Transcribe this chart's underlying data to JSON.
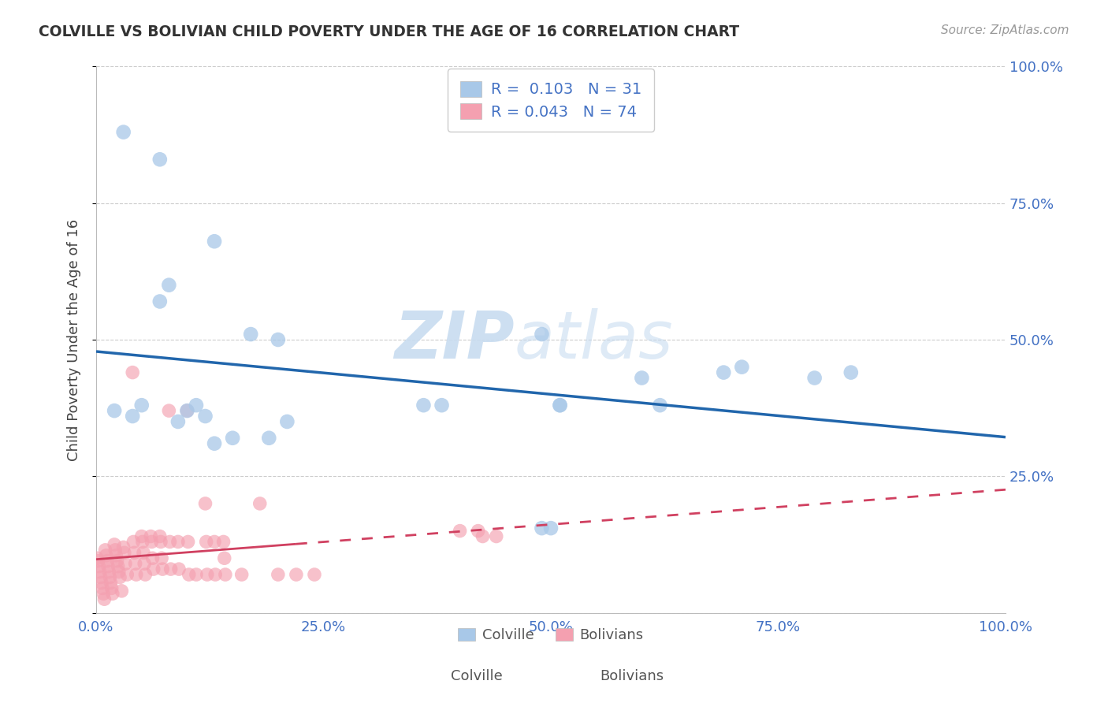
{
  "title": "COLVILLE VS BOLIVIAN CHILD POVERTY UNDER THE AGE OF 16 CORRELATION CHART",
  "source": "Source: ZipAtlas.com",
  "ylabel": "Child Poverty Under the Age of 16",
  "xlim": [
    0,
    1.0
  ],
  "ylim": [
    0,
    1.0
  ],
  "xticks": [
    0.0,
    0.25,
    0.5,
    0.75,
    1.0
  ],
  "yticks": [
    0.0,
    0.25,
    0.5,
    0.75,
    1.0
  ],
  "xticklabels": [
    "0.0%",
    "25.0%",
    "50.0%",
    "75.0%",
    "100.0%"
  ],
  "yticklabels": [
    "",
    "25.0%",
    "50.0%",
    "75.0%",
    "100.0%"
  ],
  "colville_color": "#a8c8e8",
  "bolivian_color": "#f4a0b0",
  "colville_R": 0.103,
  "colville_N": 31,
  "bolivian_R": 0.043,
  "bolivian_N": 74,
  "colville_line_color": "#2166ac",
  "bolivian_line_color": "#d04060",
  "legend_text_color": "#4472c4",
  "tick_color": "#4472c4",
  "watermark_zip": "ZIP",
  "watermark_atlas": "atlas",
  "colville_x": [
    0.02,
    0.04,
    0.05,
    0.07,
    0.08,
    0.09,
    0.1,
    0.11,
    0.12,
    0.13,
    0.15,
    0.17,
    0.19,
    0.2,
    0.21,
    0.36,
    0.38,
    0.49,
    0.51,
    0.6,
    0.62,
    0.69,
    0.71,
    0.79,
    0.83,
    0.03,
    0.07,
    0.13,
    0.49,
    0.5,
    0.51
  ],
  "colville_y": [
    0.37,
    0.36,
    0.38,
    0.57,
    0.6,
    0.35,
    0.37,
    0.38,
    0.36,
    0.31,
    0.32,
    0.51,
    0.32,
    0.5,
    0.35,
    0.38,
    0.38,
    0.51,
    0.38,
    0.43,
    0.38,
    0.44,
    0.45,
    0.43,
    0.44,
    0.88,
    0.83,
    0.68,
    0.155,
    0.155,
    0.38
  ],
  "bolivian_x": [
    0.001,
    0.002,
    0.003,
    0.004,
    0.005,
    0.006,
    0.007,
    0.008,
    0.009,
    0.01,
    0.011,
    0.012,
    0.013,
    0.014,
    0.015,
    0.016,
    0.017,
    0.018,
    0.02,
    0.021,
    0.022,
    0.023,
    0.024,
    0.025,
    0.026,
    0.028,
    0.03,
    0.031,
    0.032,
    0.034,
    0.04,
    0.041,
    0.042,
    0.043,
    0.044,
    0.05,
    0.051,
    0.052,
    0.053,
    0.054,
    0.06,
    0.061,
    0.062,
    0.063,
    0.07,
    0.071,
    0.072,
    0.073,
    0.08,
    0.081,
    0.082,
    0.09,
    0.091,
    0.1,
    0.101,
    0.102,
    0.11,
    0.12,
    0.121,
    0.122,
    0.13,
    0.131,
    0.14,
    0.141,
    0.142,
    0.16,
    0.18,
    0.2,
    0.22,
    0.24,
    0.4,
    0.42,
    0.425,
    0.44
  ],
  "bolivian_y": [
    0.1,
    0.095,
    0.085,
    0.075,
    0.065,
    0.055,
    0.045,
    0.035,
    0.025,
    0.115,
    0.105,
    0.095,
    0.085,
    0.075,
    0.065,
    0.055,
    0.045,
    0.035,
    0.125,
    0.115,
    0.105,
    0.095,
    0.085,
    0.075,
    0.065,
    0.04,
    0.12,
    0.11,
    0.09,
    0.07,
    0.44,
    0.13,
    0.11,
    0.09,
    0.07,
    0.14,
    0.13,
    0.11,
    0.09,
    0.07,
    0.14,
    0.13,
    0.1,
    0.08,
    0.14,
    0.13,
    0.1,
    0.08,
    0.37,
    0.13,
    0.08,
    0.13,
    0.08,
    0.37,
    0.13,
    0.07,
    0.07,
    0.2,
    0.13,
    0.07,
    0.13,
    0.07,
    0.13,
    0.1,
    0.07,
    0.07,
    0.2,
    0.07,
    0.07,
    0.07,
    0.15,
    0.15,
    0.14,
    0.14
  ]
}
